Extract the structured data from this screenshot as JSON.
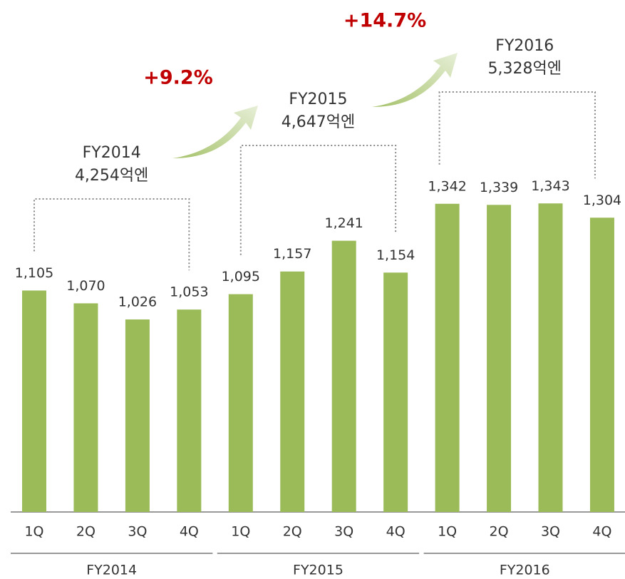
{
  "chart_data": {
    "type": "bar",
    "categories": [
      "1Q",
      "2Q",
      "3Q",
      "4Q",
      "1Q",
      "2Q",
      "3Q",
      "4Q",
      "1Q",
      "2Q",
      "3Q",
      "4Q"
    ],
    "values": [
      1105,
      1070,
      1026,
      1053,
      1095,
      1157,
      1241,
      1154,
      1342,
      1339,
      1343,
      1304
    ],
    "value_labels": [
      "1,105",
      "1,070",
      "1,026",
      "1,053",
      "1,095",
      "1,157",
      "1,241",
      "1,154",
      "1,342",
      "1,339",
      "1,343",
      "1,304"
    ],
    "color": "#9bbb59",
    "ylim": [
      500,
      1400
    ],
    "groups": [
      {
        "label": "FY2014",
        "title": "FY2014",
        "total": "4,254억엔"
      },
      {
        "label": "FY2015",
        "title": "FY2015",
        "total": "4,647억엔"
      },
      {
        "label": "FY2016",
        "title": "FY2016",
        "total": "5,328억엔"
      }
    ],
    "growth": [
      "+9.2%",
      "+14.7%"
    ]
  }
}
